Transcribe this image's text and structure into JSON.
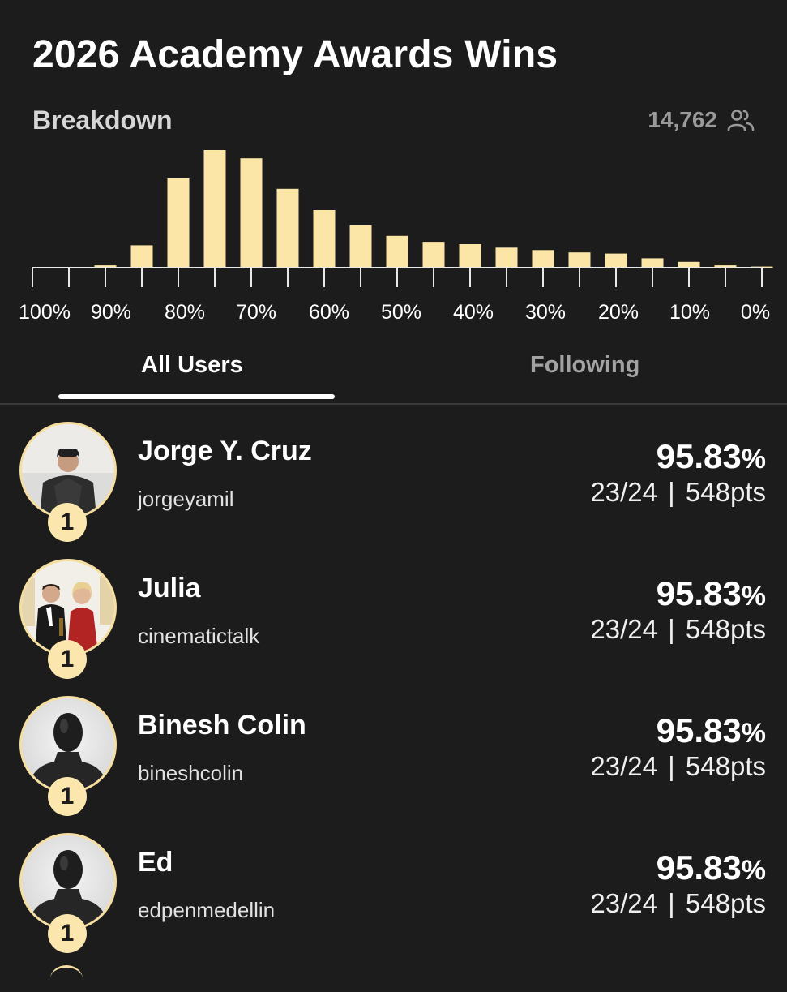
{
  "header": {
    "title": "2026 Academy Awards Wins",
    "breakdown_label": "Breakdown",
    "participant_count": "14,762",
    "participant_icon": "people-icon"
  },
  "chart_data": {
    "type": "bar",
    "categories": [
      "100%",
      "95%",
      "90%",
      "85%",
      "80%",
      "75%",
      "70%",
      "65%",
      "60%",
      "55%",
      "50%",
      "45%",
      "40%",
      "35%",
      "30%",
      "25%",
      "20%",
      "15%",
      "10%",
      "5%",
      "0%"
    ],
    "values": [
      0,
      0,
      2,
      19,
      76,
      100,
      93,
      67,
      49,
      36,
      27,
      22,
      20,
      17,
      15,
      13,
      12,
      8,
      5,
      2,
      1
    ],
    "tick_labels": [
      "100%",
      "90%",
      "80%",
      "70%",
      "60%",
      "50%",
      "40%",
      "30%",
      "20%",
      "10%",
      "0%"
    ],
    "bar_color": "#fbe6a8",
    "ylim": [
      0,
      100
    ],
    "grid": false,
    "xlabel": "",
    "ylabel": ""
  },
  "tabs": {
    "all_users": "All Users",
    "following": "Following",
    "active": "all_users"
  },
  "users": [
    {
      "name": "Jorge Y. Cruz",
      "handle": "jorgeyamil",
      "rank": "1",
      "percent": "95.83",
      "percent_symbol": "%",
      "correct": "23/24",
      "separator": "|",
      "points": "548pts",
      "avatar": "photo-man-coat"
    },
    {
      "name": "Julia",
      "handle": "cinematictalk",
      "rank": "1",
      "percent": "95.83",
      "percent_symbol": "%",
      "correct": "23/24",
      "separator": "|",
      "points": "548pts",
      "avatar": "photo-couple-awards"
    },
    {
      "name": "Binesh Colin",
      "handle": "bineshcolin",
      "rank": "1",
      "percent": "95.83",
      "percent_symbol": "%",
      "correct": "23/24",
      "separator": "|",
      "points": "548pts",
      "avatar": "default-mannequin"
    },
    {
      "name": "Ed",
      "handle": "edpenmedellin",
      "rank": "1",
      "percent": "95.83",
      "percent_symbol": "%",
      "correct": "23/24",
      "separator": "|",
      "points": "548pts",
      "avatar": "default-mannequin"
    }
  ],
  "colors": {
    "background": "#1c1c1c",
    "accent": "#fbe7ad",
    "muted_text": "#a3a3a3"
  }
}
